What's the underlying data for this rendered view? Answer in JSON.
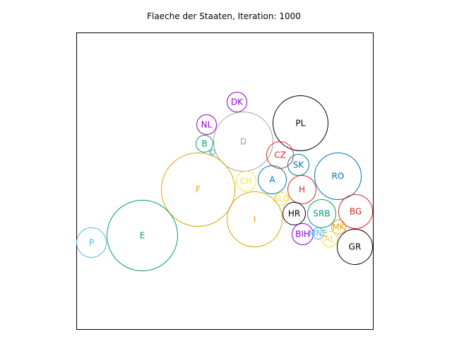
{
  "chart_data": {
    "type": "scatter",
    "title": "Flaeche der Staaten, Iteration: 1000",
    "xlabel": "",
    "ylabel": "",
    "xlim": [
      0,
      420
    ],
    "ylim": [
      0,
      420
    ],
    "axes_visible": false,
    "grid": false,
    "points": [
      {
        "label": "DK",
        "x": 227,
        "y": 322,
        "r": 14,
        "color": "#9400d3"
      },
      {
        "label": "PL",
        "x": 317,
        "y": 292,
        "r": 39,
        "color": "#000000"
      },
      {
        "label": "NL",
        "x": 184,
        "y": 290,
        "r": 14,
        "color": "#9400d3"
      },
      {
        "label": "D",
        "x": 236,
        "y": 266,
        "r": 42,
        "color": "#a0a0a0"
      },
      {
        "label": "B",
        "x": 181,
        "y": 263,
        "r": 12,
        "color": "#009e73"
      },
      {
        "label": "L",
        "x": 192,
        "y": 251,
        "r": 4,
        "color": "#56b4e9"
      },
      {
        "label": "CZ",
        "x": 288,
        "y": 247,
        "r": 19,
        "color": "#d62728"
      },
      {
        "label": "SK",
        "x": 314,
        "y": 233,
        "r": 15,
        "color": "#0072b2"
      },
      {
        "label": "RO",
        "x": 370,
        "y": 217,
        "r": 33,
        "color": "#0072b2"
      },
      {
        "label": "F",
        "x": 172,
        "y": 198,
        "r": 52,
        "color": "#e69f00"
      },
      {
        "label": "CH",
        "x": 240,
        "y": 210,
        "r": 14,
        "color": "#f0e442"
      },
      {
        "label": "A",
        "x": 277,
        "y": 212,
        "r": 20,
        "color": "#0072b2"
      },
      {
        "label": "H",
        "x": 319,
        "y": 198,
        "r": 20,
        "color": "#d62728"
      },
      {
        "label": "SLO",
        "x": 290,
        "y": 185,
        "r": 9,
        "color": "#f0e442"
      },
      {
        "label": "I",
        "x": 252,
        "y": 156,
        "r": 39,
        "color": "#e69f00"
      },
      {
        "label": "HR",
        "x": 308,
        "y": 164,
        "r": 16,
        "color": "#000000"
      },
      {
        "label": "SRB",
        "x": 347,
        "y": 164,
        "r": 20,
        "color": "#009e73"
      },
      {
        "label": "BG",
        "x": 395,
        "y": 167,
        "r": 24,
        "color": "#d62728"
      },
      {
        "label": "E",
        "x": 93,
        "y": 133,
        "r": 50,
        "color": "#009e73"
      },
      {
        "label": "P",
        "x": 21,
        "y": 123,
        "r": 21,
        "color": "#56b4e9"
      },
      {
        "label": "BIH",
        "x": 320,
        "y": 135,
        "r": 15,
        "color": "#9400d3"
      },
      {
        "label": "MNE",
        "x": 342,
        "y": 136,
        "r": 8,
        "color": "#56b4e9"
      },
      {
        "label": "MK",
        "x": 371,
        "y": 145,
        "r": 10,
        "color": "#e69f00"
      },
      {
        "label": "AL",
        "x": 358,
        "y": 128,
        "r": 11,
        "color": "#f0e442"
      },
      {
        "label": "GR",
        "x": 394,
        "y": 117,
        "r": 25,
        "color": "#000000"
      }
    ]
  }
}
